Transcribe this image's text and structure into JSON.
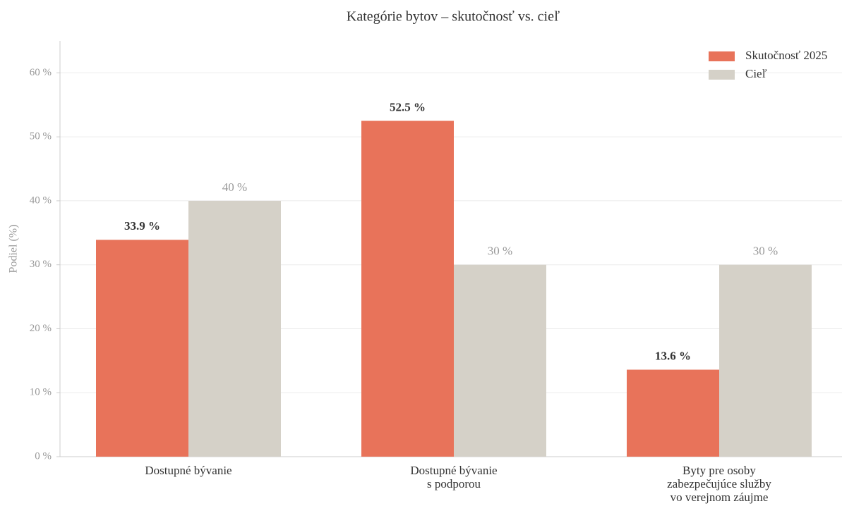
{
  "chart_data": {
    "type": "bar",
    "title": "Kategórie bytov – skutočnosť vs. cieľ",
    "y_label": "Podiel (%)",
    "categories": [
      "Dostupné bývanie",
      "Dostupné bývanie\ns podporou",
      "Byty pre osoby\nzabezpečujúce služby\nvo verejnom záujme"
    ],
    "series": [
      {
        "name": "Skutočnosť 2025",
        "color": "#e8735a",
        "values": [
          33.9,
          52.5,
          13.6
        ],
        "value_labels": [
          "33.9 %",
          "52.5 %",
          "13.6 %"
        ]
      },
      {
        "name": "Cieľ",
        "color": "#d5d1c8",
        "values": [
          40,
          30,
          30
        ],
        "value_labels": [
          "40 %",
          "30 %",
          "30 %"
        ]
      }
    ],
    "ylim": [
      0,
      65
    ],
    "yticks": [
      {
        "value": 0,
        "label": "0 %"
      },
      {
        "value": 10,
        "label": "10 %"
      },
      {
        "value": 20,
        "label": "20 %"
      },
      {
        "value": 30,
        "label": "30 %"
      },
      {
        "value": 40,
        "label": "40 %"
      },
      {
        "value": 50,
        "label": "50 %"
      },
      {
        "value": 60,
        "label": "60 %"
      }
    ],
    "grid": true,
    "legend": "upper right"
  }
}
